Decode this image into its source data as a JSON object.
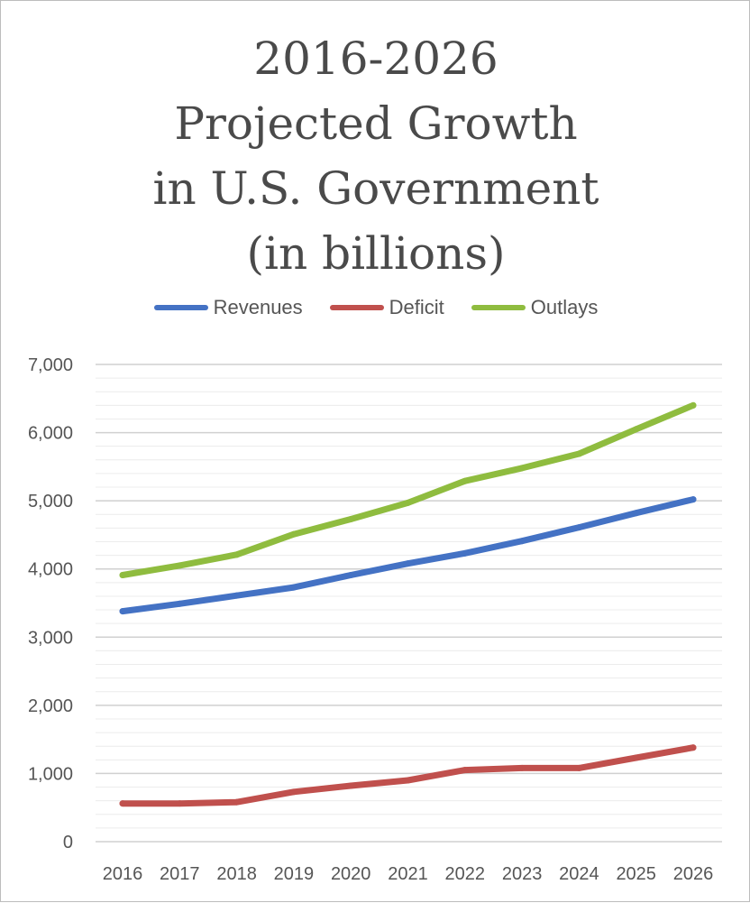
{
  "chart_data": {
    "type": "line",
    "title_lines": [
      "2016-2026",
      "Projected Growth",
      "in U.S. Government",
      "(in billions)"
    ],
    "xlabel": "",
    "ylabel": "",
    "x": [
      "2016",
      "2017",
      "2018",
      "2019",
      "2020",
      "2021",
      "2022",
      "2023",
      "2024",
      "2025",
      "2026"
    ],
    "ylim": [
      0,
      7000
    ],
    "yticks": [
      "0",
      "1,000",
      "2,000",
      "3,000",
      "4,000",
      "5,000",
      "6,000",
      "7,000"
    ],
    "legend_position": "top-center",
    "grid": true,
    "series": [
      {
        "name": "Revenues",
        "color": "#4472c4",
        "values": [
          3380,
          3490,
          3610,
          3730,
          3910,
          4080,
          4230,
          4410,
          4610,
          4820,
          5020
        ]
      },
      {
        "name": "Deficit",
        "color": "#c0504d",
        "values": [
          560,
          560,
          580,
          730,
          820,
          900,
          1050,
          1080,
          1080,
          1230,
          1380
        ]
      },
      {
        "name": "Outlays",
        "color": "#8fbc3f",
        "values": [
          3910,
          4050,
          4210,
          4510,
          4730,
          4970,
          5290,
          5480,
          5690,
          6050,
          6400
        ]
      }
    ]
  }
}
